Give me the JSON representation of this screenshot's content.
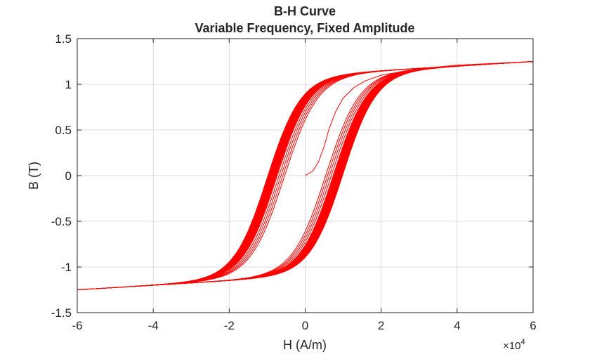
{
  "chart_data": {
    "type": "line",
    "title": "B-H Curve",
    "subtitle": "Variable Frequency,  Fixed Amplitude",
    "xlabel": "H (A/m)",
    "ylabel": "B (T)",
    "x_exponent_label": "×10",
    "x_exponent_power": "4",
    "xlim": [
      -6,
      6
    ],
    "ylim": [
      -1.5,
      1.5
    ],
    "x_scale": 10000,
    "xticks": [
      "-6",
      "-4",
      "-2",
      "0",
      "2",
      "4",
      "6"
    ],
    "yticks": [
      "1.5",
      "1",
      "0.5",
      "0",
      "-0.5",
      "-1",
      "-1.5"
    ],
    "grid": true,
    "color": "#ff0000",
    "initial_curve": {
      "H": [
        0,
        0.2,
        0.35,
        0.5,
        0.62,
        0.8,
        1.0,
        1.3,
        1.6,
        2.0,
        3.0,
        4.0,
        6.0
      ],
      "B": [
        0,
        0.05,
        0.15,
        0.32,
        0.5,
        0.7,
        0.85,
        0.97,
        1.04,
        1.1,
        1.17,
        1.21,
        1.25
      ]
    },
    "loops": {
      "saturation_B": 1.25,
      "coercive_fields_H": [
        0.55,
        0.6,
        0.65,
        0.7,
        0.75,
        0.77,
        0.78,
        0.79,
        0.8,
        0.81,
        0.82,
        0.83,
        0.84,
        0.85,
        0.86,
        0.87,
        0.88,
        0.89,
        0.9,
        0.91,
        0.92,
        0.93,
        0.94,
        0.95,
        0.96,
        0.97,
        0.98,
        0.99,
        1.0
      ]
    }
  }
}
